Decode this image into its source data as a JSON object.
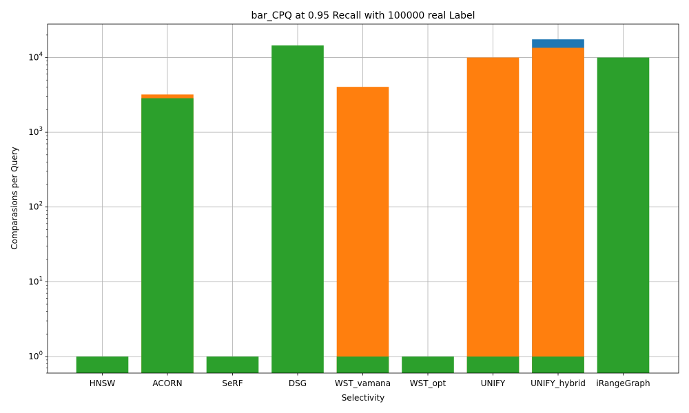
{
  "chart_data": {
    "type": "bar",
    "title": "bar_CPQ at 0.95 Recall with 100000 real Label",
    "xlabel": "Selectivity",
    "ylabel": "Comparasions per Query",
    "yscale": "log",
    "ylim": [
      0.6,
      28000
    ],
    "grid": true,
    "legend": "none",
    "categories": [
      "HNSW",
      "ACORN",
      "SeRF",
      "DSG",
      "WST_vamana",
      "WST_opt",
      "UNIFY",
      "UNIFY_hybrid",
      "iRangeGraph"
    ],
    "yticks": [
      {
        "base": "10",
        "exp": "0",
        "value": 1
      },
      {
        "base": "10",
        "exp": "1",
        "value": 10
      },
      {
        "base": "10",
        "exp": "2",
        "value": 100
      },
      {
        "base": "10",
        "exp": "3",
        "value": 1000
      },
      {
        "base": "10",
        "exp": "4",
        "value": 10000
      }
    ],
    "series": [
      {
        "color": "#1f77b4",
        "values": [
          null,
          null,
          null,
          null,
          null,
          null,
          null,
          17500,
          null
        ]
      },
      {
        "color": "#ff7f0e",
        "values": [
          null,
          3200,
          null,
          null,
          4050,
          null,
          10000,
          13500,
          null
        ]
      },
      {
        "color": "#2ca02c",
        "values": [
          1,
          2850,
          1,
          14500,
          1,
          1,
          1,
          1,
          10000
        ]
      }
    ]
  }
}
